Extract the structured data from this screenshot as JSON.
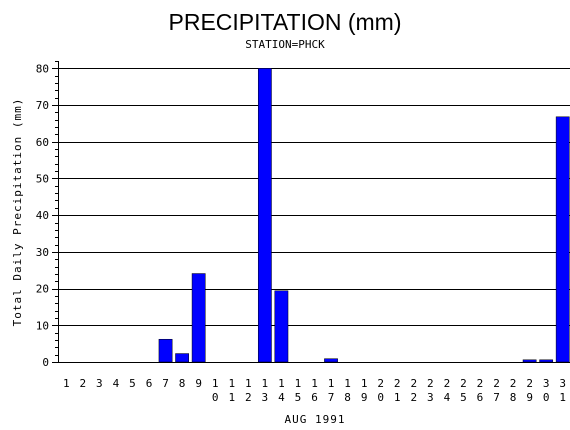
{
  "chart_data": {
    "type": "bar",
    "title": "PRECIPITATION (mm)",
    "subtitle": "STATION=PHCK",
    "xlabel": "AUG 1991",
    "ylabel": "Total Daily Precipitation (mm)",
    "categories": [
      "1",
      "2",
      "3",
      "4",
      "5",
      "6",
      "7",
      "8",
      "9",
      "10",
      "11",
      "12",
      "13",
      "14",
      "15",
      "16",
      "17",
      "18",
      "19",
      "20",
      "21",
      "22",
      "23",
      "24",
      "25",
      "26",
      "27",
      "28",
      "29",
      "30",
      "31"
    ],
    "values": [
      0,
      0,
      0,
      0,
      0,
      0,
      6.2,
      2.3,
      24.1,
      0,
      0,
      0,
      80,
      19.4,
      0,
      0,
      0.9,
      0,
      0,
      0,
      0,
      0,
      0,
      0,
      0,
      0,
      0,
      0,
      0.6,
      0.6,
      66.8
    ],
    "ylim": [
      0,
      82
    ],
    "yticks": [
      0,
      10,
      20,
      30,
      40,
      50,
      60,
      70,
      80
    ],
    "grid": true,
    "bar_color": "#0000ff"
  }
}
